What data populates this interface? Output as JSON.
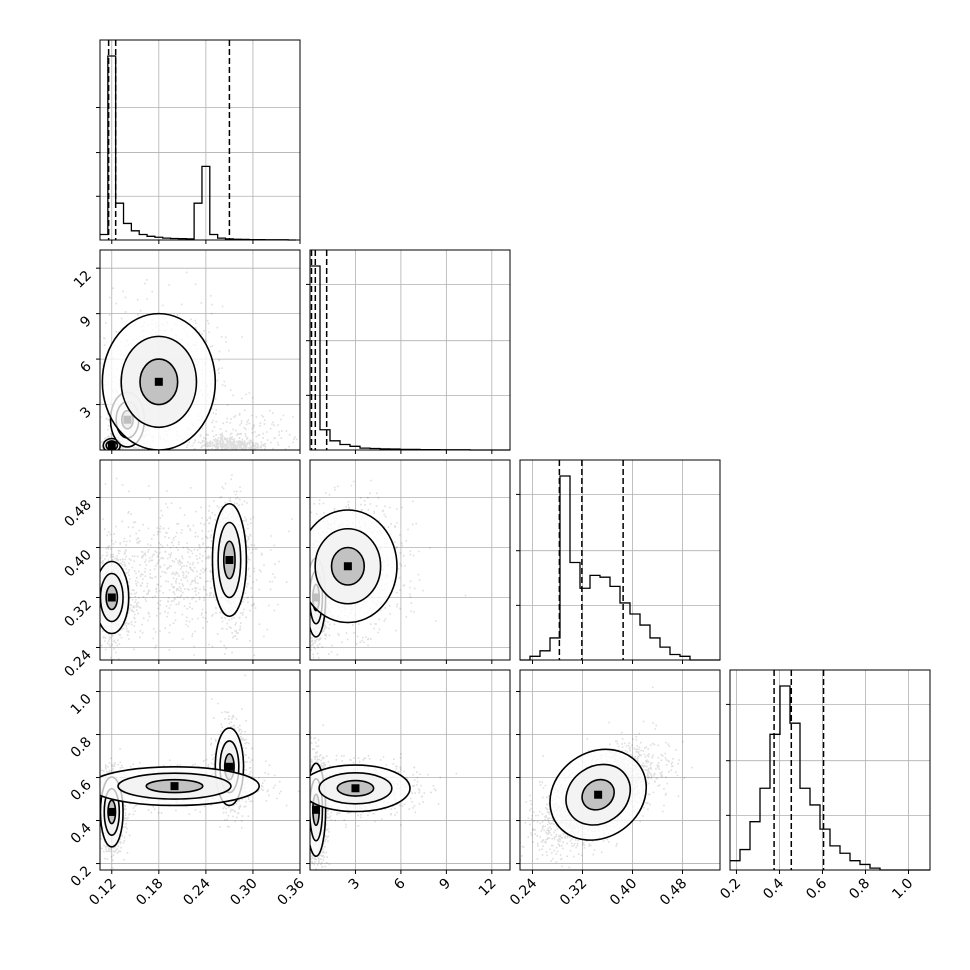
{
  "chart_data": {
    "type": "corner",
    "axis_ticks": [
      {
        "labels": [
          "0.12",
          "0.18",
          "0.24",
          "0.30",
          "0.36"
        ],
        "values": [
          0.12,
          0.18,
          0.24,
          0.3,
          0.36
        ],
        "range": [
          0.105,
          0.36
        ]
      },
      {
        "labels": [
          "3",
          "6",
          "9",
          "12"
        ],
        "values": [
          3,
          6,
          9,
          12
        ],
        "range": [
          0.0,
          13.2
        ]
      },
      {
        "labels": [
          "0.24",
          "0.32",
          "0.40",
          "0.48"
        ],
        "values": [
          0.24,
          0.32,
          0.4,
          0.48
        ],
        "range": [
          0.22,
          0.54
        ]
      },
      {
        "labels": [
          "0.2",
          "0.4",
          "0.6",
          "0.8",
          "1.0"
        ],
        "values": [
          0.2,
          0.4,
          0.6,
          0.8,
          1.0
        ],
        "range": [
          0.17,
          1.1
        ]
      }
    ],
    "histograms": [
      {
        "parameter": 0,
        "bin_edges": [
          0.105,
          0.115,
          0.125,
          0.135,
          0.145,
          0.155,
          0.165,
          0.175,
          0.185,
          0.195,
          0.205,
          0.215,
          0.225,
          0.235,
          0.245,
          0.255,
          0.265,
          0.275,
          0.285,
          0.295,
          0.305,
          0.315,
          0.325,
          0.335,
          0.345,
          0.355
        ],
        "counts": [
          0.03,
          1.0,
          0.2,
          0.09,
          0.05,
          0.03,
          0.02,
          0.015,
          0.01,
          0.008,
          0.007,
          0.006,
          0.2,
          0.4,
          0.03,
          0.01,
          0.006,
          0.004,
          0.003,
          0.002,
          0.002,
          0.001,
          0.001,
          0.001,
          0.0
        ],
        "quantiles": [
          0.116,
          0.125,
          0.27
        ]
      },
      {
        "parameter": 1,
        "bin_edges": [
          0.0,
          0.66,
          1.32,
          1.98,
          2.64,
          3.3,
          3.96,
          4.62,
          5.28,
          5.94,
          6.6,
          7.26,
          7.92,
          8.58,
          9.24,
          9.9,
          10.56,
          11.22,
          11.88,
          12.54,
          13.2
        ],
        "counts": [
          1.0,
          0.11,
          0.05,
          0.03,
          0.02,
          0.01,
          0.008,
          0.006,
          0.005,
          0.003,
          0.003,
          0.002,
          0.002,
          0.001,
          0.001,
          0.001,
          0.0,
          0.0,
          0.0,
          0.0
        ],
        "quantiles": [
          0.1,
          0.35,
          1.1
        ]
      },
      {
        "parameter": 2,
        "bin_edges": [
          0.22,
          0.236,
          0.252,
          0.268,
          0.284,
          0.3,
          0.316,
          0.332,
          0.348,
          0.364,
          0.38,
          0.396,
          0.412,
          0.428,
          0.444,
          0.46,
          0.476,
          0.492,
          0.508,
          0.524,
          0.54
        ],
        "counts": [
          0.0,
          0.02,
          0.05,
          0.12,
          1.0,
          0.53,
          0.39,
          0.46,
          0.45,
          0.4,
          0.31,
          0.25,
          0.19,
          0.12,
          0.07,
          0.03,
          0.02,
          0.0,
          0.0,
          0.0
        ],
        "quantiles": [
          0.283,
          0.319,
          0.385
        ]
      },
      {
        "parameter": 3,
        "bin_edges": [
          0.17,
          0.2165,
          0.263,
          0.3095,
          0.356,
          0.4025,
          0.449,
          0.4955,
          0.542,
          0.5885,
          0.635,
          0.6815,
          0.728,
          0.7745,
          0.821,
          0.8675,
          0.914,
          0.9605,
          1.007,
          1.0535,
          1.1
        ],
        "counts": [
          0.05,
          0.11,
          0.26,
          0.44,
          0.73,
          0.99,
          0.79,
          0.44,
          0.35,
          0.22,
          0.13,
          0.09,
          0.05,
          0.03,
          0.01,
          0.0,
          0.0,
          0.0,
          0.0,
          0.0
        ],
        "quantiles": [
          0.375,
          0.455,
          0.605
        ]
      }
    ],
    "scatter_panels": [
      {
        "x_param": 0,
        "y_param": 1,
        "clusters": [
          {
            "cx": 0.12,
            "cy": 0.3,
            "sx": 0.006,
            "sy": 0.25,
            "n": 500
          },
          {
            "cx": 0.14,
            "cy": 2.0,
            "sx": 0.012,
            "sy": 1.0,
            "n": 400
          },
          {
            "cx": 0.18,
            "cy": 4.5,
            "sx": 0.04,
            "sy": 2.5,
            "n": 700
          },
          {
            "cx": 0.27,
            "cy": 0.4,
            "sx": 0.02,
            "sy": 0.3,
            "n": 350
          },
          {
            "cx": 0.3,
            "cy": 1.0,
            "sx": 0.04,
            "sy": 0.8,
            "n": 150
          }
        ]
      },
      {
        "x_param": 0,
        "y_param": 2,
        "clusters": [
          {
            "cx": 0.12,
            "cy": 0.32,
            "sx": 0.012,
            "sy": 0.032,
            "n": 1100
          },
          {
            "cx": 0.27,
            "cy": 0.38,
            "sx": 0.012,
            "sy": 0.05,
            "n": 700
          },
          {
            "cx": 0.2,
            "cy": 0.36,
            "sx": 0.06,
            "sy": 0.05,
            "n": 700
          }
        ]
      },
      {
        "x_param": 0,
        "y_param": 3,
        "clusters": [
          {
            "cx": 0.12,
            "cy": 0.44,
            "sx": 0.008,
            "sy": 0.09,
            "n": 900
          },
          {
            "cx": 0.27,
            "cy": 0.65,
            "sx": 0.01,
            "sy": 0.1,
            "n": 700
          },
          {
            "cx": 0.2,
            "cy": 0.56,
            "sx": 0.06,
            "sy": 0.05,
            "n": 800
          }
        ]
      },
      {
        "x_param": 1,
        "y_param": 2,
        "clusters": [
          {
            "cx": 0.4,
            "cy": 0.32,
            "sx": 0.35,
            "sy": 0.035,
            "n": 1100
          },
          {
            "cx": 2.5,
            "cy": 0.37,
            "sx": 1.8,
            "sy": 0.05,
            "n": 1000
          }
        ]
      },
      {
        "x_param": 1,
        "y_param": 3,
        "clusters": [
          {
            "cx": 0.4,
            "cy": 0.45,
            "sx": 0.35,
            "sy": 0.12,
            "n": 1100
          },
          {
            "cx": 3.0,
            "cy": 0.55,
            "sx": 2.0,
            "sy": 0.06,
            "n": 900
          }
        ]
      },
      {
        "x_param": 2,
        "y_param": 3,
        "clusters": [
          {
            "cx": 0.345,
            "cy": 0.52,
            "sx": 0.045,
            "sy": 0.11,
            "rho": 0.6,
            "n": 2400
          }
        ]
      }
    ],
    "contour_levels": [
      "inner",
      "middle",
      "outer"
    ],
    "grid": true,
    "colors": {
      "points": "#000000",
      "lines": "#000000",
      "grid": "#b0b0b0",
      "fill_dark": "#555555",
      "fill_mid": "#bdbdbd"
    }
  }
}
